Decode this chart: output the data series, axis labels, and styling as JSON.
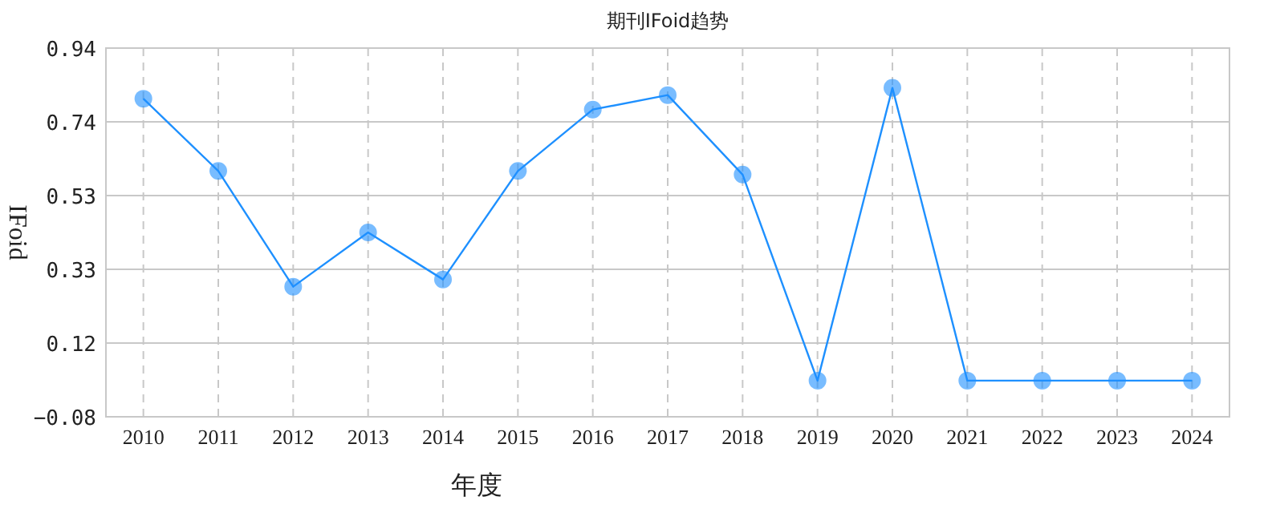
{
  "chart_data": {
    "type": "line",
    "title": "期刊IFoid趋势",
    "xlabel": "年度",
    "ylabel": "IFoid",
    "categories": [
      "2010",
      "2011",
      "2012",
      "2013",
      "2014",
      "2015",
      "2016",
      "2017",
      "2018",
      "2019",
      "2020",
      "2021",
      "2022",
      "2023",
      "2024"
    ],
    "series": [
      {
        "color": "#1e90ff",
        "values": [
          0.8,
          0.6,
          0.28,
          0.43,
          0.3,
          0.6,
          0.77,
          0.81,
          0.59,
          0.02,
          0.83,
          0.02,
          0.02,
          0.02,
          0.02
        ]
      }
    ],
    "ylim": [
      -0.08,
      0.94
    ],
    "yticks": [
      -0.08,
      {
        "value": 0.124,
        "label": "0.12"
      },
      {
        "value": 0.328,
        "label": "0.33"
      },
      {
        "value": 0.532,
        "label": "0.53"
      },
      {
        "value": 0.736,
        "label": "0.74"
      },
      0.94
    ],
    "grid": true,
    "marker": "circle",
    "line_style": "solid"
  }
}
